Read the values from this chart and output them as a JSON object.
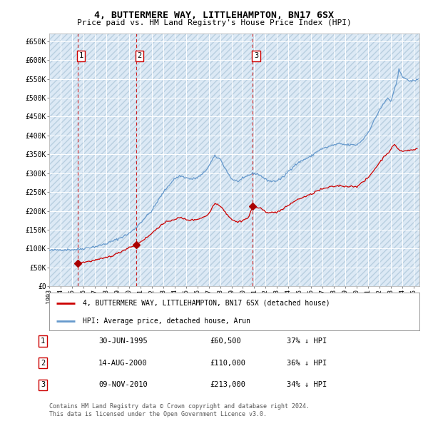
{
  "title": "4, BUTTERMERE WAY, LITTLEHAMPTON, BN17 6SX",
  "subtitle": "Price paid vs. HM Land Registry's House Price Index (HPI)",
  "ytick_vals": [
    0,
    50000,
    100000,
    150000,
    200000,
    250000,
    300000,
    350000,
    400000,
    450000,
    500000,
    550000,
    600000,
    650000
  ],
  "ylabel_ticks": [
    "£0",
    "£50K",
    "£100K",
    "£150K",
    "£200K",
    "£250K",
    "£300K",
    "£350K",
    "£400K",
    "£450K",
    "£500K",
    "£550K",
    "£600K",
    "£650K"
  ],
  "xmin": 1993.0,
  "xmax": 2025.5,
  "ymin": 0,
  "ymax": 670000,
  "bg_color": "#dce9f5",
  "hatch_color": "#b8cfe0",
  "grid_color": "#ffffff",
  "sale_dates": [
    1995.5,
    2000.62,
    2010.87
  ],
  "sale_prices": [
    60500,
    110000,
    213000
  ],
  "sale_labels": [
    "1",
    "2",
    "3"
  ],
  "legend_line1": "4, BUTTERMERE WAY, LITTLEHAMPTON, BN17 6SX (detached house)",
  "legend_line2": "HPI: Average price, detached house, Arun",
  "table_rows": [
    [
      "1",
      "30-JUN-1995",
      "£60,500",
      "37% ↓ HPI"
    ],
    [
      "2",
      "14-AUG-2000",
      "£110,000",
      "36% ↓ HPI"
    ],
    [
      "3",
      "09-NOV-2010",
      "£213,000",
      "34% ↓ HPI"
    ]
  ],
  "footer1": "Contains HM Land Registry data © Crown copyright and database right 2024.",
  "footer2": "This data is licensed under the Open Government Licence v3.0.",
  "sale_line_color": "#cc0000",
  "hpi_line_color": "#6699cc",
  "marker_color": "#aa0000"
}
